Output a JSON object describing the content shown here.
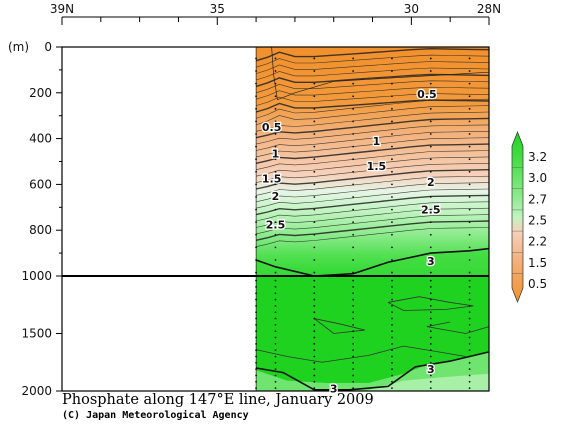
{
  "chart_data": {
    "type": "contour",
    "caption": "Phosphate along 147°E line, January 2009",
    "credit": "(C) Japan Meteorological Agency",
    "depth_unit": "(m)",
    "x_top_labels": [
      {
        "lat": 39,
        "text": "39N"
      },
      {
        "lat": 35,
        "text": "35"
      },
      {
        "lat": 30,
        "text": "30"
      },
      {
        "lat": 28,
        "text": "28N"
      }
    ],
    "y_ticks_upper": [
      0,
      200,
      400,
      600,
      800,
      1000
    ],
    "y_ticks_lower": [
      1500,
      2000
    ],
    "xlim": [
      39,
      28
    ],
    "ylim": [
      0,
      2000
    ],
    "upper_panel_depth_range": [
      0,
      1000
    ],
    "lower_panel_depth_range": [
      1000,
      2000
    ],
    "data_start_lat": 34.0,
    "station_lats": [
      34.0,
      33.5,
      32.5,
      31.5,
      30.5,
      29.5,
      28.5
    ],
    "colorbar": {
      "labels": [
        "3.2",
        "3.0",
        "2.7",
        "2.5",
        "2.2",
        "1.5",
        "0.5"
      ],
      "colors": [
        "#1fd21f",
        "#52e052",
        "#8ceb8c",
        "#c0f4c0",
        "#f6d2bc",
        "#f3b27d",
        "#f1902d"
      ]
    },
    "bold_contour_labels": [
      {
        "value": "0.5",
        "lat": 33.6,
        "depth": 350
      },
      {
        "value": "0.5",
        "lat": 29.6,
        "depth": 205
      },
      {
        "value": "1",
        "lat": 33.5,
        "depth": 465
      },
      {
        "value": "1",
        "lat": 30.9,
        "depth": 410
      },
      {
        "value": "1.5",
        "lat": 33.6,
        "depth": 575
      },
      {
        "value": "1.5",
        "lat": 30.9,
        "depth": 520
      },
      {
        "value": "2",
        "lat": 33.5,
        "depth": 650
      },
      {
        "value": "2",
        "lat": 29.5,
        "depth": 590
      },
      {
        "value": "2.5",
        "lat": 33.5,
        "depth": 775
      },
      {
        "value": "2.5",
        "lat": 29.5,
        "depth": 710
      },
      {
        "value": "3",
        "lat": 29.5,
        "depth": 935
      },
      {
        "value": "3",
        "lat": 29.5,
        "depth": 1810
      },
      {
        "value": "3",
        "lat": 32.0,
        "depth": 1980
      }
    ]
  }
}
